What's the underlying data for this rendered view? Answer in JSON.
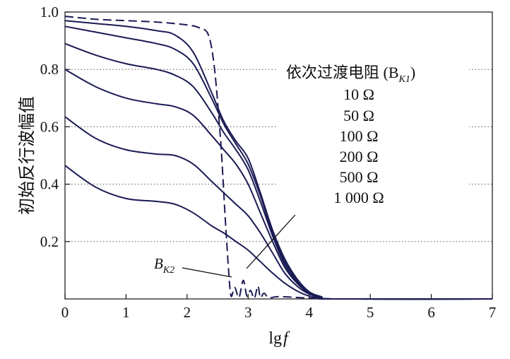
{
  "chart_data": {
    "type": "line",
    "title": "",
    "xlabel": "lg f",
    "xlabel_main": "lg",
    "xlabel_var": "f",
    "ylabel": "初始反行波幅值",
    "xlim": [
      0,
      7
    ],
    "ylim": [
      0,
      1.0
    ],
    "xticks": [
      "0",
      "1",
      "2",
      "3",
      "4",
      "5",
      "6",
      "7"
    ],
    "yticks": [
      "0.2",
      "0.4",
      "0.6",
      "0.8",
      "1.0"
    ],
    "ytick_values": [
      0.2,
      0.4,
      0.6,
      0.8,
      1.0
    ],
    "grid": "horizontal dotted on right side",
    "legend": {
      "heading": "依次过渡电阻 (B",
      "heading_sub": "K1",
      "heading_close": ")",
      "entries": [
        "10 Ω",
        "50 Ω",
        "100 Ω",
        "200 Ω",
        "500 Ω",
        "1 000 Ω"
      ]
    },
    "annotation": {
      "text": "B",
      "sub": "K2"
    },
    "colors": {
      "solid": "#1b1b55",
      "dashed": "#1b1b55"
    },
    "series": [
      {
        "style": "solid",
        "x": [
          0,
          0.5,
          1.0,
          1.5,
          1.8,
          2.1,
          2.4,
          2.6,
          2.8,
          3.0,
          3.2,
          3.4,
          3.6,
          3.8,
          4.0,
          4.2,
          4.4,
          7.0
        ],
        "y": [
          0.97,
          0.96,
          0.95,
          0.935,
          0.92,
          0.86,
          0.72,
          0.62,
          0.55,
          0.49,
          0.37,
          0.24,
          0.14,
          0.07,
          0.025,
          0.008,
          0.0,
          0.0
        ]
      },
      {
        "style": "solid",
        "x": [
          0,
          0.5,
          1.0,
          1.5,
          1.8,
          2.1,
          2.4,
          2.6,
          2.8,
          3.0,
          3.2,
          3.4,
          3.6,
          3.8,
          4.0,
          4.2,
          4.4,
          7.0
        ],
        "y": [
          0.95,
          0.93,
          0.91,
          0.89,
          0.87,
          0.82,
          0.7,
          0.61,
          0.54,
          0.47,
          0.36,
          0.23,
          0.13,
          0.065,
          0.023,
          0.007,
          0.0,
          0.0
        ]
      },
      {
        "style": "solid",
        "x": [
          0,
          0.5,
          1.0,
          1.5,
          1.8,
          2.1,
          2.4,
          2.6,
          2.8,
          3.0,
          3.2,
          3.4,
          3.6,
          3.8,
          4.0,
          4.2,
          4.4,
          7.0
        ],
        "y": [
          0.89,
          0.85,
          0.82,
          0.8,
          0.78,
          0.74,
          0.65,
          0.58,
          0.52,
          0.45,
          0.34,
          0.22,
          0.12,
          0.06,
          0.02,
          0.006,
          0.0,
          0.0
        ]
      },
      {
        "style": "solid",
        "x": [
          0,
          0.5,
          1.0,
          1.5,
          1.8,
          2.1,
          2.4,
          2.6,
          2.8,
          3.0,
          3.2,
          3.4,
          3.6,
          3.8,
          4.0,
          4.2,
          4.4,
          7.0
        ],
        "y": [
          0.8,
          0.74,
          0.7,
          0.68,
          0.67,
          0.64,
          0.57,
          0.52,
          0.47,
          0.4,
          0.3,
          0.2,
          0.11,
          0.055,
          0.02,
          0.006,
          0.0,
          0.0
        ]
      },
      {
        "style": "solid",
        "x": [
          0,
          0.5,
          1.0,
          1.5,
          1.8,
          2.1,
          2.4,
          2.6,
          2.8,
          3.0,
          3.2,
          3.4,
          3.6,
          3.8,
          4.0,
          4.2,
          4.4,
          7.0
        ],
        "y": [
          0.635,
          0.56,
          0.52,
          0.505,
          0.5,
          0.47,
          0.41,
          0.37,
          0.33,
          0.29,
          0.23,
          0.16,
          0.09,
          0.045,
          0.017,
          0.005,
          0.0,
          0.0
        ]
      },
      {
        "style": "solid",
        "x": [
          0,
          0.5,
          1.0,
          1.5,
          1.8,
          2.1,
          2.4,
          2.6,
          2.8,
          3.0,
          3.2,
          3.4,
          3.6,
          3.8,
          4.0,
          4.2,
          4.4,
          7.0
        ],
        "y": [
          0.465,
          0.39,
          0.35,
          0.34,
          0.33,
          0.3,
          0.255,
          0.23,
          0.2,
          0.17,
          0.13,
          0.09,
          0.055,
          0.028,
          0.01,
          0.003,
          0.0,
          0.0
        ]
      },
      {
        "style": "dashed",
        "x": [
          0,
          0.5,
          1.0,
          1.5,
          2.0,
          2.2,
          2.35,
          2.45,
          2.55,
          2.62,
          2.68,
          2.72,
          2.78,
          2.85,
          2.92,
          2.98,
          3.04,
          3.1,
          3.16,
          3.2,
          3.26,
          3.34,
          3.5,
          4.0,
          4.5,
          7.0
        ],
        "y": [
          0.985,
          0.975,
          0.97,
          0.965,
          0.955,
          0.945,
          0.92,
          0.8,
          0.55,
          0.3,
          0.1,
          0.01,
          0.04,
          0.005,
          0.065,
          0.01,
          0.03,
          0.002,
          0.045,
          0.005,
          0.02,
          0.004,
          0.008,
          0.003,
          0.0,
          0.0
        ]
      }
    ]
  }
}
